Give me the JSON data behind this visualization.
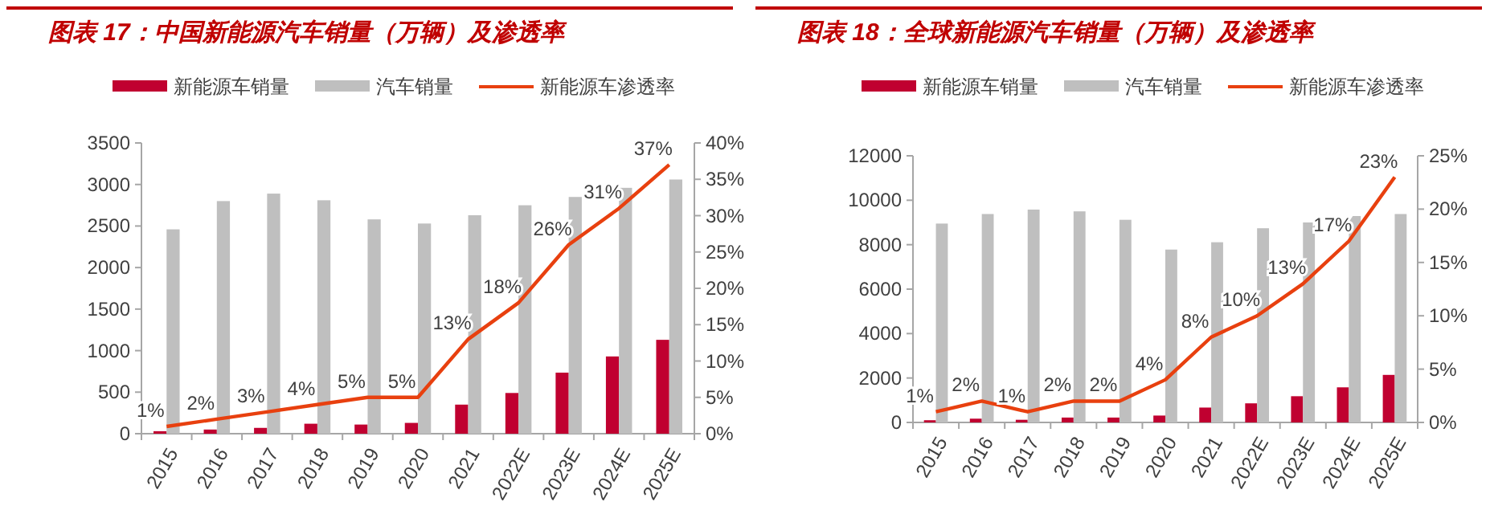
{
  "chart_data": [
    {
      "type": "bar",
      "title": "图表 17：中国新能源汽车销量（万辆）及渗透率",
      "categories": [
        "2015",
        "2016",
        "2017",
        "2018",
        "2019",
        "2020",
        "2021",
        "2022E",
        "2023E",
        "2024E",
        "2025E"
      ],
      "series": [
        {
          "name": "新能源车销量",
          "color": "#c00030",
          "values": [
            30,
            50,
            70,
            120,
            110,
            130,
            350,
            490,
            735,
            930,
            1130
          ]
        },
        {
          "name": "汽车销量",
          "color": "#bfbfbf",
          "values": [
            2460,
            2800,
            2890,
            2810,
            2580,
            2530,
            2630,
            2750,
            2850,
            2960,
            3060
          ]
        },
        {
          "name": "新能源车渗透率",
          "color": "#e8400f",
          "type": "line",
          "axis": "y2",
          "values": [
            1,
            2,
            3,
            4,
            5,
            5,
            13,
            18,
            26,
            31,
            37
          ],
          "value_labels": [
            "1%",
            "2%",
            "3%",
            "4%",
            "5%",
            "5%",
            "13%",
            "18%",
            "26%",
            "31%",
            "37%"
          ]
        }
      ],
      "ylim": [
        0,
        3500
      ],
      "yticks": [
        0,
        500,
        1000,
        1500,
        2000,
        2500,
        3000,
        3500
      ],
      "y2lim": [
        0,
        40
      ],
      "y2ticks": [
        {
          "value": 0,
          "label": "0%"
        },
        {
          "value": 5,
          "label": "5%"
        },
        {
          "value": 10,
          "label": "10%"
        },
        {
          "value": 15,
          "label": "15%"
        },
        {
          "value": 20,
          "label": "20%"
        },
        {
          "value": 25,
          "label": "25%"
        },
        {
          "value": 30,
          "label": "30%"
        },
        {
          "value": 35,
          "label": "35%"
        },
        {
          "value": 40,
          "label": "40%"
        }
      ],
      "legend": "top",
      "grid": false
    },
    {
      "type": "bar",
      "title": "图表 18：全球新能源汽车销量（万辆）及渗透率",
      "categories": [
        "2015",
        "2016",
        "2017",
        "2018",
        "2019",
        "2020",
        "2021",
        "2022E",
        "2023E",
        "2024E",
        "2025E"
      ],
      "series": [
        {
          "name": "新能源车销量",
          "color": "#c00030",
          "values": [
            100,
            170,
            120,
            220,
            220,
            310,
            670,
            860,
            1180,
            1580,
            2140
          ]
        },
        {
          "name": "汽车销量",
          "color": "#bfbfbf",
          "values": [
            8950,
            9380,
            9580,
            9500,
            9120,
            7780,
            8110,
            8740,
            9000,
            9290,
            9380
          ]
        },
        {
          "name": "新能源车渗透率",
          "color": "#e8400f",
          "type": "line",
          "axis": "y2",
          "values": [
            1,
            2,
            1,
            2,
            2,
            4,
            8,
            10,
            13,
            17,
            23
          ],
          "value_labels": [
            "1%",
            "2%",
            "1%",
            "2%",
            "2%",
            "4%",
            "8%",
            "10%",
            "13%",
            "17%",
            "23%"
          ]
        }
      ],
      "ylim": [
        0,
        12000
      ],
      "yticks": [
        0,
        2000,
        4000,
        6000,
        8000,
        10000,
        12000
      ],
      "y2lim": [
        0,
        25
      ],
      "y2ticks": [
        {
          "value": 0,
          "label": "0%"
        },
        {
          "value": 5,
          "label": "5%"
        },
        {
          "value": 10,
          "label": "10%"
        },
        {
          "value": 15,
          "label": "15%"
        },
        {
          "value": 20,
          "label": "20%"
        },
        {
          "value": 25,
          "label": "25%"
        }
      ],
      "legend": "top",
      "grid": false
    }
  ]
}
